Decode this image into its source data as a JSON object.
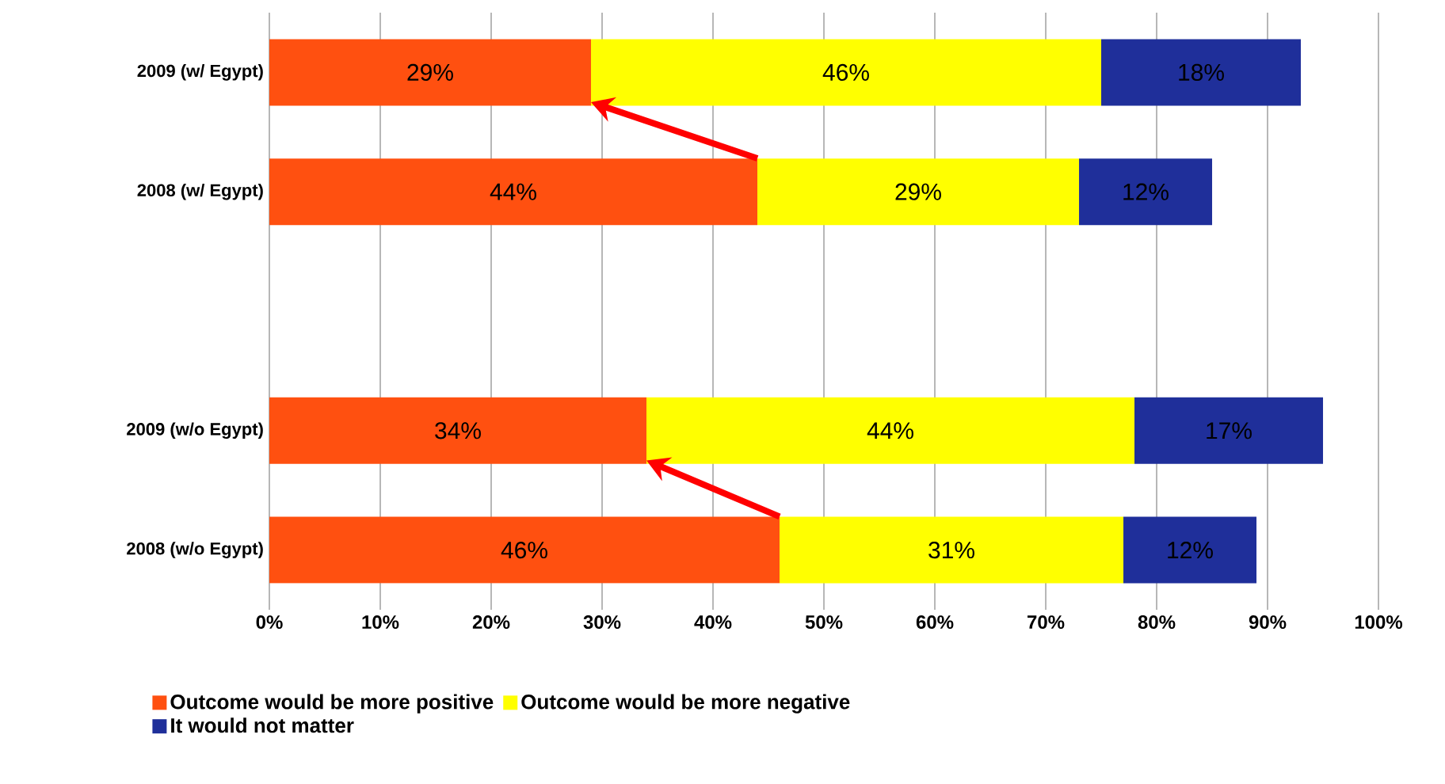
{
  "chart_data": {
    "type": "bar",
    "orientation": "horizontal",
    "stacked": true,
    "categories": [
      "2009 (w/ Egypt)",
      "2008 (w/ Egypt)",
      null,
      "2009 (w/o Egypt)",
      "2008 (w/o Egypt)"
    ],
    "series": [
      {
        "name": "Outcome would be more positive",
        "color": "#ff5010",
        "values": [
          29,
          44,
          null,
          34,
          46
        ],
        "value_labels": [
          "29%",
          "44%",
          null,
          "34%",
          "46%"
        ]
      },
      {
        "name": "Outcome would be more negative",
        "color": "#ffff00",
        "values": [
          46,
          29,
          null,
          44,
          31
        ],
        "value_labels": [
          "46%",
          "29%",
          null,
          "44%",
          "31%"
        ]
      },
      {
        "name": "It would not matter",
        "color": "#1f2f9a",
        "values": [
          18,
          12,
          null,
          17,
          12
        ],
        "value_labels": [
          "18%",
          "12%",
          null,
          "17%",
          "12%"
        ]
      }
    ],
    "xlim": [
      0,
      100
    ],
    "xticks": [
      {
        "value": 0,
        "label": "0%"
      },
      {
        "value": 10,
        "label": "10%"
      },
      {
        "value": 20,
        "label": "20%"
      },
      {
        "value": 30,
        "label": "30%"
      },
      {
        "value": 40,
        "label": "40%"
      },
      {
        "value": 50,
        "label": "50%"
      },
      {
        "value": 60,
        "label": "60%"
      },
      {
        "value": 70,
        "label": "70%"
      },
      {
        "value": 80,
        "label": "80%"
      },
      {
        "value": 90,
        "label": "90%"
      },
      {
        "value": 100,
        "label": "100%"
      }
    ],
    "grid": "x",
    "legend": "bottom"
  }
}
